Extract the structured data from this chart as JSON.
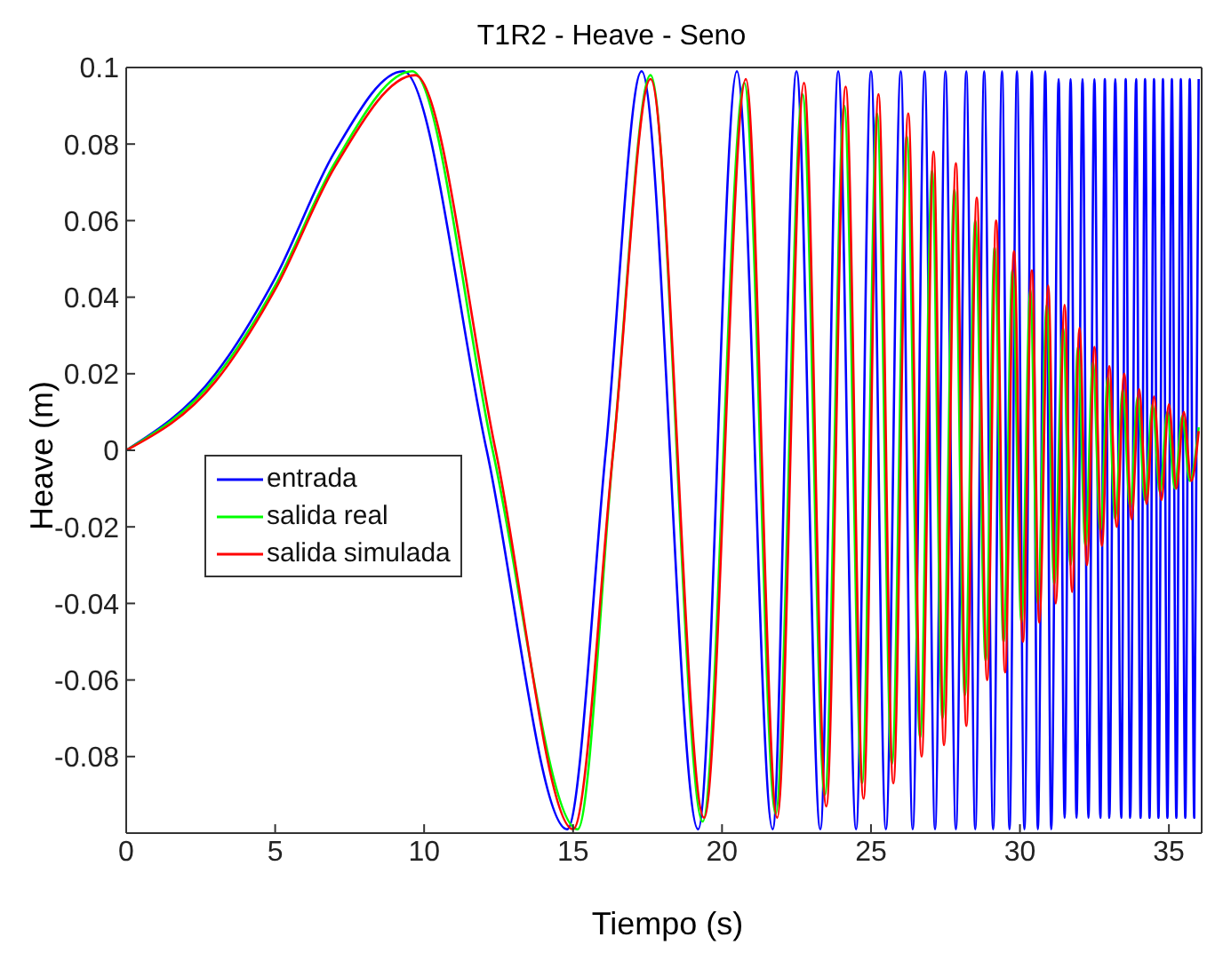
{
  "chart_data": {
    "type": "line",
    "title": "T1R2 - Heave - Seno",
    "xlabel": "Tiempo (s)",
    "ylabel": "Heave (m)",
    "xlim": [
      0,
      36.1
    ],
    "xticks": [
      0,
      5,
      10,
      15,
      20,
      25,
      30,
      35
    ],
    "ylim": [
      -0.1,
      0.1
    ],
    "yticks": [
      -0.08,
      -0.06,
      -0.04,
      -0.02,
      0,
      0.02,
      0.04,
      0.06,
      0.08,
      0.1
    ],
    "grid": false,
    "legend": "left",
    "marker": "none",
    "line_style": "solid",
    "series": [
      {
        "name": "entrada",
        "color": "#0000ff",
        "x": [
          0,
          3,
          5,
          7,
          9.3,
          12.1,
          14.8,
          16.1,
          17.3,
          19.2,
          20.5,
          21.7,
          22.5,
          23.3,
          23.9,
          24.5,
          25.0,
          25.5,
          26.0,
          26.4,
          26.8,
          27.15,
          27.5,
          27.85,
          28.2,
          28.5,
          28.8,
          29.1,
          29.4,
          29.65,
          29.9,
          30.15,
          30.4,
          30.6,
          30.85,
          31.05,
          31.3,
          31.5,
          31.7,
          31.9,
          32.1,
          32.3,
          32.5,
          32.7,
          32.85,
          33.0,
          33.2,
          33.4,
          33.55,
          33.7,
          33.9,
          34.05,
          34.2,
          34.35,
          34.5,
          34.65,
          34.8,
          34.95,
          35.1,
          35.25,
          35.4,
          35.55,
          35.7,
          35.85,
          36.0
        ],
        "values": [
          0,
          0.02,
          0.045,
          0.078,
          0.099,
          0,
          -0.099,
          0,
          0.099,
          -0.099,
          0.099,
          -0.099,
          0.099,
          -0.099,
          0.099,
          -0.099,
          0.099,
          -0.099,
          0.099,
          -0.099,
          0.099,
          -0.099,
          0.099,
          -0.099,
          0.099,
          -0.099,
          0.099,
          -0.099,
          0.099,
          -0.099,
          0.099,
          -0.099,
          0.099,
          -0.099,
          0.099,
          -0.099,
          0.097,
          -0.096,
          0.097,
          -0.096,
          0.097,
          -0.096,
          0.097,
          -0.096,
          0.097,
          -0.096,
          0.097,
          -0.096,
          0.097,
          -0.096,
          0.097,
          -0.096,
          0.097,
          -0.096,
          0.097,
          -0.096,
          0.097,
          -0.096,
          0.097,
          -0.096,
          0.097,
          -0.096,
          0.097,
          -0.096,
          0.097
        ]
      },
      {
        "name": "salida real",
        "color": "#00ff00",
        "x": [
          0,
          3,
          5,
          7,
          9.6,
          12.3,
          15.15,
          16.35,
          17.6,
          19.35,
          20.75,
          21.8,
          22.7,
          23.45,
          24.1,
          24.7,
          25.2,
          25.7,
          26.2,
          26.65,
          27.05,
          27.4,
          27.8,
          28.15,
          28.5,
          28.85,
          29.15,
          29.45,
          29.75,
          30.05,
          30.35,
          30.6,
          30.9,
          31.15,
          31.45,
          31.7,
          31.95,
          32.2,
          32.45,
          32.7,
          32.95,
          33.2,
          33.45,
          33.7,
          33.95,
          34.2,
          34.45,
          34.7,
          34.95,
          35.2,
          35.45,
          35.7,
          36.0
        ],
        "values": [
          0,
          0.019,
          0.043,
          0.075,
          0.099,
          0,
          -0.099,
          0,
          0.098,
          -0.097,
          0.096,
          -0.095,
          0.093,
          -0.09,
          0.09,
          -0.087,
          0.088,
          -0.082,
          0.082,
          -0.075,
          0.073,
          -0.07,
          0.068,
          -0.064,
          0.06,
          -0.055,
          0.053,
          -0.05,
          0.047,
          -0.045,
          0.042,
          -0.04,
          0.038,
          -0.035,
          0.032,
          -0.03,
          0.027,
          -0.025,
          0.023,
          -0.021,
          0.019,
          -0.018,
          0.016,
          -0.015,
          0.014,
          -0.013,
          0.012,
          -0.011,
          0.01,
          -0.01,
          0.009,
          -0.008,
          0.006
        ]
      },
      {
        "name": "salida simulada",
        "color": "#ff0000",
        "x": [
          0,
          3,
          5,
          7,
          9.7,
          12.4,
          15.0,
          16.35,
          17.6,
          19.4,
          20.8,
          21.85,
          22.75,
          23.5,
          24.15,
          24.75,
          25.25,
          25.75,
          26.25,
          26.7,
          27.1,
          27.45,
          27.85,
          28.2,
          28.55,
          28.9,
          29.2,
          29.5,
          29.8,
          30.1,
          30.4,
          30.65,
          30.95,
          31.2,
          31.5,
          31.75,
          32.0,
          32.25,
          32.5,
          32.75,
          33.0,
          33.25,
          33.5,
          33.75,
          34.0,
          34.25,
          34.5,
          34.75,
          35.0,
          35.25,
          35.5,
          35.75,
          36.0
        ],
        "values": [
          0,
          0.018,
          0.042,
          0.074,
          0.098,
          0,
          -0.099,
          0,
          0.097,
          -0.096,
          0.097,
          -0.096,
          0.096,
          -0.093,
          0.095,
          -0.091,
          0.093,
          -0.087,
          0.088,
          -0.08,
          0.078,
          -0.077,
          0.075,
          -0.072,
          0.066,
          -0.06,
          0.06,
          -0.058,
          0.052,
          -0.05,
          0.047,
          -0.045,
          0.043,
          -0.04,
          0.038,
          -0.037,
          0.032,
          -0.03,
          0.027,
          -0.025,
          0.022,
          -0.02,
          0.02,
          -0.018,
          0.016,
          -0.014,
          0.014,
          -0.013,
          0.012,
          -0.01,
          0.01,
          -0.008,
          0.005
        ]
      }
    ]
  }
}
